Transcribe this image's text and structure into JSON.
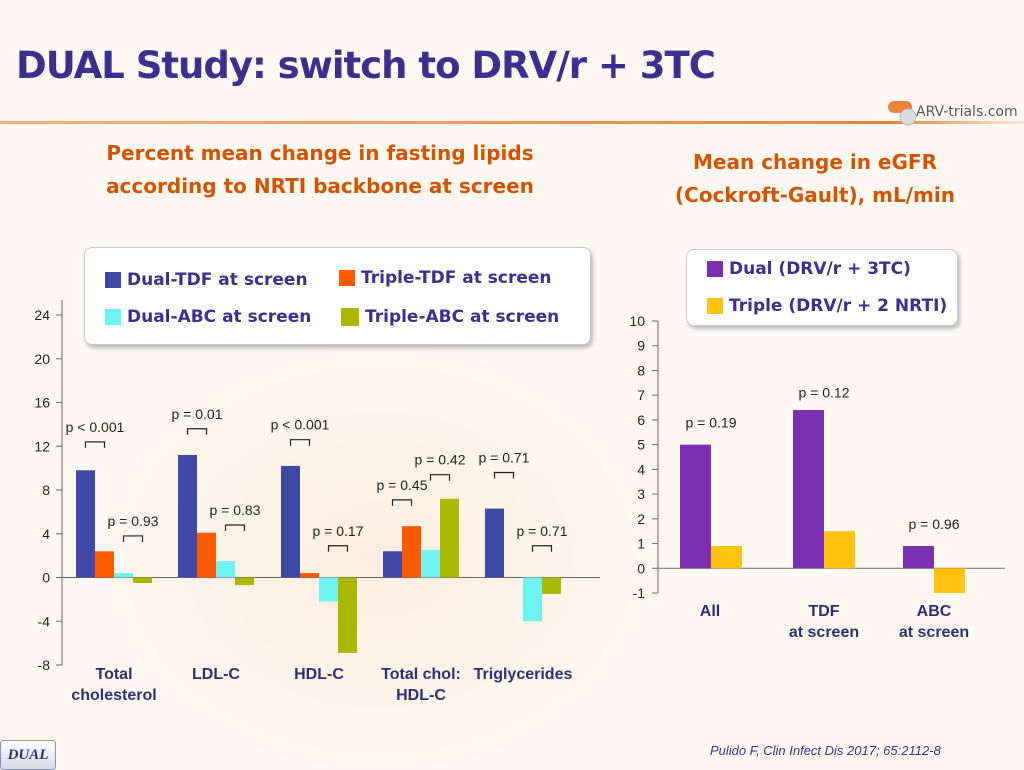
{
  "title": "DUAL Study: switch to DRV/r + 3TC",
  "logo_text": "ARV-trials.com",
  "left_subtitle": [
    "Percent mean change in fasting lipids",
    "according to NRTI backbone at screen"
  ],
  "right_subtitle": [
    "Mean change in eGFR",
    "(Cockroft-Gault), mL/min"
  ],
  "citation": "Pulido F, Clin Infect Dis 2017; 65:2112-8",
  "badge": "DUAL",
  "colors": {
    "title": "#3c2f8e",
    "subtitle": "#d35400",
    "dual_tdf": "#3f4aa6",
    "triple_tdf": "#ff5a00",
    "dual_abc": "#6ff2f2",
    "triple_abc": "#aab800",
    "dual": "#7b2fb3",
    "triple": "#ffc20e"
  },
  "chart_data": [
    {
      "type": "bar",
      "title": "Percent mean change in fasting lipids according to NRTI backbone at screen",
      "categories": [
        [
          "Total",
          "cholesterol"
        ],
        [
          "LDL-C"
        ],
        [
          "HDL-C"
        ],
        [
          "Total chol:",
          "HDL-C"
        ],
        [
          "Triglycerides"
        ]
      ],
      "series": [
        {
          "name": "Dual-TDF at screen",
          "color": "#3f4aa6",
          "values": [
            9.8,
            11.2,
            10.2,
            2.4,
            6.3
          ]
        },
        {
          "name": "Triple-TDF at screen",
          "color": "#ff5a00",
          "values": [
            2.4,
            4.1,
            0.4,
            4.7,
            0.0
          ]
        },
        {
          "name": "Dual-ABC at screen",
          "color": "#6ff2f2",
          "values": [
            0.4,
            1.5,
            -2.2,
            2.5,
            -4.0
          ]
        },
        {
          "name": "Triple-ABC at screen",
          "color": "#aab800",
          "values": [
            -0.5,
            -0.7,
            -6.9,
            7.2,
            -1.5
          ]
        }
      ],
      "ylim": [
        -8,
        24
      ],
      "yticks": [
        -8,
        -4,
        0,
        4,
        8,
        12,
        16,
        20,
        24
      ],
      "pvalues": [
        {
          "text": "p < 0.001",
          "category": 0,
          "pair": "TDF",
          "value": 12.4
        },
        {
          "text": "p = 0.93",
          "category": 0,
          "pair": "ABC",
          "value": 3.8
        },
        {
          "text": "p = 0.01",
          "category": 1,
          "pair": "TDF",
          "value": 13.6
        },
        {
          "text": "p = 0.83",
          "category": 1,
          "pair": "ABC",
          "value": 4.8
        },
        {
          "text": "p < 0.001",
          "category": 2,
          "pair": "TDF",
          "value": 12.6
        },
        {
          "text": "p = 0.17",
          "category": 2,
          "pair": "ABC",
          "value": 2.9
        },
        {
          "text": "p = 0.45",
          "category": 3,
          "pair": "TDF",
          "value": 7.1
        },
        {
          "text": "p = 0.42",
          "category": 3,
          "pair": "ABC",
          "value": 9.4
        },
        {
          "text": "p = 0.71",
          "category": 4,
          "pair": "TDF",
          "value": 9.6
        },
        {
          "text": "p = 0.71",
          "category": 4,
          "pair": "ABC",
          "value": 2.9
        }
      ]
    },
    {
      "type": "bar",
      "title": "Mean change in eGFR (Cockroft-Gault), mL/min",
      "categories": [
        [
          "All"
        ],
        [
          "TDF",
          "at screen"
        ],
        [
          "ABC",
          "at screen"
        ]
      ],
      "series": [
        {
          "name": "Dual (DRV/r + 3TC)",
          "color": "#7b2fb3",
          "values": [
            5.0,
            6.4,
            0.9
          ]
        },
        {
          "name": "Triple (DRV/r + 2 NRTI)",
          "color": "#ffc20e",
          "values": [
            0.9,
            1.5,
            -1.0
          ]
        }
      ],
      "ylim": [
        -1,
        10
      ],
      "yticks": [
        -1,
        0,
        1,
        2,
        3,
        4,
        5,
        6,
        7,
        8,
        9,
        10
      ],
      "pvalues": [
        {
          "text": "p = 0.19",
          "category": 0,
          "value": 5.9
        },
        {
          "text": "p = 0.12",
          "category": 1,
          "value": 7.1
        },
        {
          "text": "p = 0.96",
          "category": 2,
          "value": 1.8
        }
      ]
    }
  ]
}
